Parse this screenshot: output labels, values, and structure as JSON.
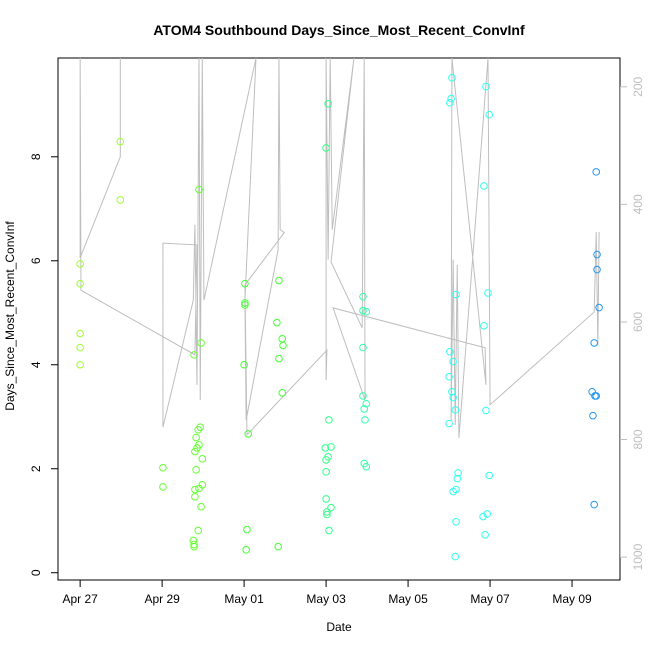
{
  "chart_data": {
    "type": "scatter",
    "title": "ATOM4 Southbound Days_Since_Most_Recent_ConvInf",
    "x_label": "Date",
    "y_label": "Days_Since_Most_Recent_ConvInf",
    "xlim": [
      -0.54,
      13.17
    ],
    "xticks": [
      {
        "value": 0,
        "label": "Apr 27"
      },
      {
        "value": 2,
        "label": "Apr 29"
      },
      {
        "value": 4,
        "label": "May 01"
      },
      {
        "value": 6,
        "label": "May 03"
      },
      {
        "value": 8,
        "label": "May 05"
      },
      {
        "value": 10,
        "label": "May 07"
      },
      {
        "value": 12,
        "label": "May 09"
      }
    ],
    "ylim": [
      -0.14,
      9.9
    ],
    "yticks": [
      0,
      2,
      4,
      6,
      8
    ],
    "y2lim": [
      1039,
      151
    ],
    "y2ticks": [
      200,
      400,
      600,
      800,
      1000
    ],
    "series": [
      {
        "color": "#9cff2e",
        "x": [
          0,
          0,
          0,
          0,
          0,
          0.98,
          0.98
        ],
        "values": [
          5.94,
          5.56,
          4.6,
          4.33,
          4.0,
          8.29,
          7.17
        ]
      },
      {
        "color": "#66ff33",
        "x": [
          2.02,
          2.02,
          2.78,
          2.9,
          2.95,
          2.93,
          2.88,
          2.83,
          2.9,
          2.85,
          2.8,
          2.98,
          2.83,
          2.98,
          2.9,
          2.8,
          2.8,
          2.95,
          2.88,
          2.76,
          2.78,
          2.78
        ],
        "values": [
          2.02,
          1.65,
          4.19,
          7.37,
          4.42,
          2.8,
          2.75,
          2.6,
          2.46,
          2.4,
          2.33,
          2.19,
          1.98,
          1.69,
          1.62,
          1.6,
          1.46,
          1.27,
          0.81,
          0.62,
          0.54,
          0.5
        ]
      },
      {
        "color": "#44ff33",
        "x": [
          4.02,
          4.02,
          4.02,
          4.0,
          4.1,
          4.07,
          4.05,
          4.85,
          4.8,
          4.93,
          4.95,
          4.85,
          4.93,
          4.83
        ],
        "values": [
          5.56,
          5.19,
          5.15,
          4.0,
          2.67,
          0.83,
          0.44,
          5.62,
          4.81,
          4.5,
          4.37,
          4.12,
          3.46,
          0.5
        ]
      },
      {
        "color": "#33ff88",
        "x": [
          6.05,
          6.0,
          6.07,
          6.12,
          5.98,
          6.05,
          6.0,
          6.0,
          6.0,
          6.12,
          6.02,
          6.02,
          6.07
        ],
        "values": [
          9.02,
          8.17,
          2.94,
          2.42,
          2.4,
          2.23,
          2.17,
          1.94,
          1.42,
          1.25,
          1.17,
          1.12,
          0.81
        ]
      },
      {
        "color": "#33ffaa",
        "x": [
          6.9,
          6.9,
          6.98,
          6.9,
          6.9,
          6.98,
          6.93,
          6.95,
          6.93,
          6.98
        ],
        "values": [
          5.31,
          5.04,
          5.02,
          4.33,
          3.4,
          3.25,
          3.15,
          2.94,
          2.1,
          2.04
        ]
      },
      {
        "color": "#33ffee",
        "x": [
          9.07,
          9.05,
          9.02,
          9.17,
          9.02,
          9.1,
          9.0,
          9.07,
          9.1,
          9.15,
          9.0,
          9.22,
          9.2,
          9.17,
          9.1,
          9.17,
          9.15,
          9.9,
          9.98,
          9.85,
          9.95,
          9.85,
          9.9,
          9.98,
          9.93,
          9.83,
          9.88
        ],
        "values": [
          9.52,
          9.12,
          9.04,
          5.35,
          4.25,
          4.06,
          3.77,
          3.48,
          3.37,
          3.13,
          2.87,
          1.92,
          1.81,
          1.6,
          1.56,
          0.98,
          0.31,
          9.35,
          8.81,
          7.44,
          5.38,
          4.75,
          3.12,
          1.87,
          1.13,
          1.08,
          0.73
        ]
      },
      {
        "color": "#2299ee",
        "x": [
          12.59,
          12.61,
          12.61,
          12.66,
          12.54,
          12.49,
          12.56,
          12.59,
          12.51,
          12.54
        ],
        "values": [
          7.71,
          6.12,
          5.83,
          5.1,
          4.42,
          3.48,
          3.4,
          3.4,
          3.02,
          1.31
        ]
      },
      {
        "type": "line",
        "axis": "y2",
        "color": "#bebebe",
        "x": [
          0.98,
          0.98,
          0,
          0,
          0.02,
          2.8,
          2.85,
          2.02,
          2.02,
          2.76,
          2.8,
          2.85,
          2.9,
          2.93,
          2.98,
          3.02,
          4.29,
          4.02,
          4.05,
          4.83,
          4.85,
          4.88,
          4.98,
          4.02,
          4.07,
          6.02,
          6.0,
          6.0,
          6.05,
          6.1,
          6.15,
          6.68,
          6.12,
          6.88,
          6.93,
          6.95,
          6.17,
          9.88,
          9.9,
          9.07,
          9.05,
          9.1,
          9.15,
          9.2,
          9.24,
          9.95,
          10.0,
          12.54,
          12.59,
          12.63,
          12.66
        ],
        "values": [
          151,
          319,
          491,
          151,
          546,
          656,
          469,
          466,
          779,
          563,
          435,
          707,
          151,
          733,
          151,
          563,
          151,
          563,
          767,
          477,
          151,
          443,
          448,
          537,
          792,
          648,
          699,
          151,
          494,
          151,
          443,
          151,
          498,
          610,
          151,
          733,
          576,
          644,
          707,
          151,
          767,
          494,
          775,
          503,
          797,
          151,
          741,
          583,
          447,
          639,
          447
        ]
      }
    ]
  }
}
